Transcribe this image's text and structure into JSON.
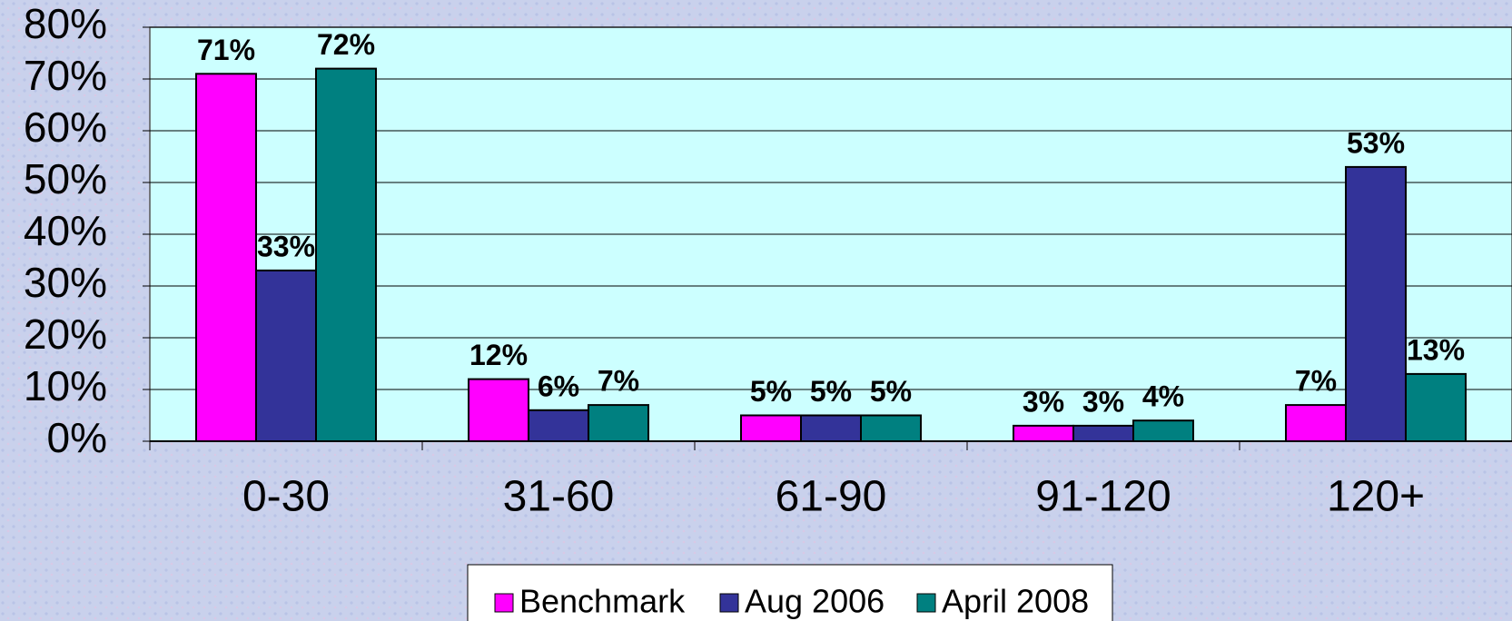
{
  "chart_data": {
    "type": "bar",
    "categories": [
      "0-30",
      "31-60",
      "61-90",
      "91-120",
      "120+"
    ],
    "series": [
      {
        "name": "Benchmark",
        "color": "#ff00ff",
        "values": [
          71,
          12,
          5,
          3,
          7
        ],
        "value_labels": [
          "71%",
          "12%",
          "5%",
          "3%",
          "7%"
        ]
      },
      {
        "name": "Aug 2006",
        "color": "#333399",
        "values": [
          33,
          6,
          5,
          3,
          53
        ],
        "value_labels": [
          "33%",
          "6%",
          "5%",
          "3%",
          "53%"
        ]
      },
      {
        "name": "April 2008",
        "color": "#008080",
        "values": [
          72,
          7,
          5,
          4,
          13
        ],
        "value_labels": [
          "72%",
          "7%",
          "5%",
          "4%",
          "13%"
        ]
      }
    ],
    "ylim": [
      0,
      80
    ],
    "yticks": [
      {
        "value": 0,
        "label": "0%"
      },
      {
        "value": 10,
        "label": "10%"
      },
      {
        "value": 20,
        "label": "20%"
      },
      {
        "value": 30,
        "label": "30%"
      },
      {
        "value": 40,
        "label": "40%"
      },
      {
        "value": 50,
        "label": "50%"
      },
      {
        "value": 60,
        "label": "60%"
      },
      {
        "value": 70,
        "label": "70%"
      },
      {
        "value": 80,
        "label": "80%"
      }
    ],
    "grid": true,
    "legend": "bottom",
    "plot_background": "#ccffff"
  }
}
